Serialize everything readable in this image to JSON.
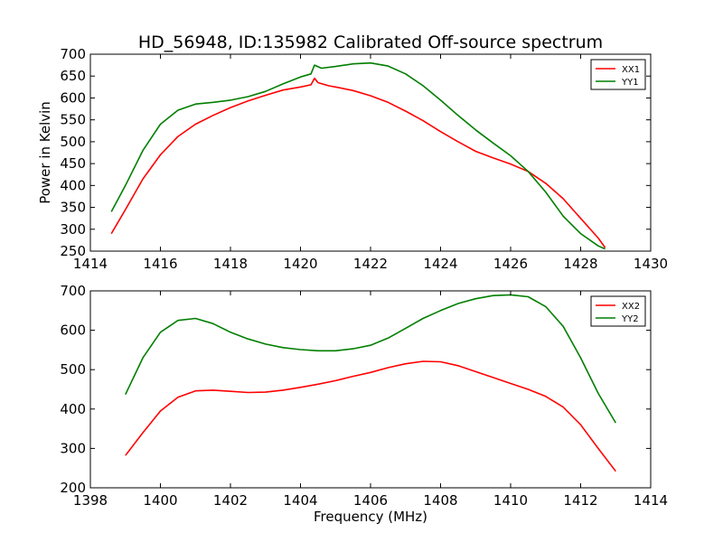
{
  "figure": {
    "title": "HD_56948, ID:135982 Calibrated Off-source spectrum"
  },
  "colors": {
    "red": "#ff0000",
    "green": "#007f00"
  },
  "chart_data": [
    {
      "type": "line",
      "title": "HD_56948, ID:135982 Calibrated Off-source spectrum",
      "xlabel": "",
      "ylabel": "Power in Kelvin",
      "xlim": [
        1414,
        1430
      ],
      "ylim": [
        250,
        700
      ],
      "xticks": [
        1414,
        1416,
        1418,
        1420,
        1422,
        1424,
        1426,
        1428,
        1430
      ],
      "yticks": [
        250,
        300,
        350,
        400,
        450,
        500,
        550,
        600,
        650,
        700
      ],
      "grid": false,
      "legend": "top-right",
      "series": [
        {
          "name": "XX1",
          "color": "#ff0000",
          "x": [
            1414.6,
            1415.0,
            1415.5,
            1416.0,
            1416.5,
            1417.0,
            1417.5,
            1418.0,
            1418.5,
            1419.0,
            1419.5,
            1420.0,
            1420.3,
            1420.4,
            1420.5,
            1420.8,
            1421.0,
            1421.5,
            1422.0,
            1422.5,
            1423.0,
            1423.5,
            1424.0,
            1424.5,
            1425.0,
            1425.5,
            1426.0,
            1426.5,
            1427.0,
            1427.5,
            1428.0,
            1428.5,
            1428.7
          ],
          "y": [
            290,
            345,
            415,
            470,
            512,
            540,
            560,
            578,
            593,
            606,
            618,
            625,
            630,
            645,
            635,
            628,
            625,
            617,
            605,
            590,
            570,
            548,
            523,
            500,
            478,
            463,
            449,
            432,
            405,
            370,
            325,
            280,
            258
          ]
        },
        {
          "name": "YY1",
          "color": "#007f00",
          "x": [
            1414.6,
            1415.0,
            1415.5,
            1416.0,
            1416.5,
            1417.0,
            1417.5,
            1418.0,
            1418.5,
            1419.0,
            1419.5,
            1420.0,
            1420.3,
            1420.4,
            1420.6,
            1421.0,
            1421.5,
            1422.0,
            1422.5,
            1423.0,
            1423.5,
            1424.0,
            1424.5,
            1425.0,
            1425.5,
            1426.0,
            1426.5,
            1427.0,
            1427.5,
            1428.0,
            1428.5,
            1428.7
          ],
          "y": [
            340,
            400,
            480,
            540,
            572,
            586,
            590,
            595,
            603,
            615,
            632,
            648,
            655,
            675,
            668,
            672,
            678,
            680,
            673,
            655,
            628,
            595,
            560,
            527,
            497,
            468,
            432,
            385,
            330,
            290,
            262,
            255
          ]
        }
      ]
    },
    {
      "type": "line",
      "title": "",
      "xlabel": "Frequency (MHz)",
      "ylabel": "",
      "xlim": [
        1398,
        1414
      ],
      "ylim": [
        200,
        700
      ],
      "xticks": [
        1398,
        1400,
        1402,
        1404,
        1406,
        1408,
        1410,
        1412,
        1414
      ],
      "yticks": [
        200,
        300,
        400,
        500,
        600,
        700
      ],
      "grid": false,
      "legend": "top-right",
      "series": [
        {
          "name": "XX2",
          "color": "#ff0000",
          "x": [
            1399.0,
            1399.5,
            1400.0,
            1400.5,
            1401.0,
            1401.5,
            1402.0,
            1402.5,
            1403.0,
            1403.5,
            1404.0,
            1404.5,
            1405.0,
            1405.5,
            1406.0,
            1406.5,
            1407.0,
            1407.5,
            1408.0,
            1408.5,
            1409.0,
            1409.5,
            1410.0,
            1410.5,
            1411.0,
            1411.5,
            1412.0,
            1412.5,
            1413.0
          ],
          "y": [
            282,
            340,
            395,
            430,
            446,
            448,
            445,
            442,
            443,
            448,
            455,
            463,
            472,
            483,
            493,
            505,
            515,
            521,
            520,
            510,
            495,
            480,
            465,
            450,
            432,
            405,
            360,
            300,
            242
          ]
        },
        {
          "name": "YY2",
          "color": "#007f00",
          "x": [
            1399.0,
            1399.5,
            1400.0,
            1400.5,
            1401.0,
            1401.5,
            1402.0,
            1402.5,
            1403.0,
            1403.5,
            1404.0,
            1404.5,
            1405.0,
            1405.5,
            1406.0,
            1406.5,
            1407.0,
            1407.5,
            1408.0,
            1408.5,
            1409.0,
            1409.5,
            1410.0,
            1410.5,
            1411.0,
            1411.5,
            1412.0,
            1412.5,
            1413.0
          ],
          "y": [
            437,
            530,
            595,
            625,
            630,
            617,
            595,
            578,
            565,
            556,
            551,
            548,
            548,
            553,
            562,
            580,
            605,
            630,
            650,
            668,
            680,
            688,
            690,
            685,
            660,
            610,
            530,
            440,
            365
          ]
        }
      ]
    }
  ]
}
